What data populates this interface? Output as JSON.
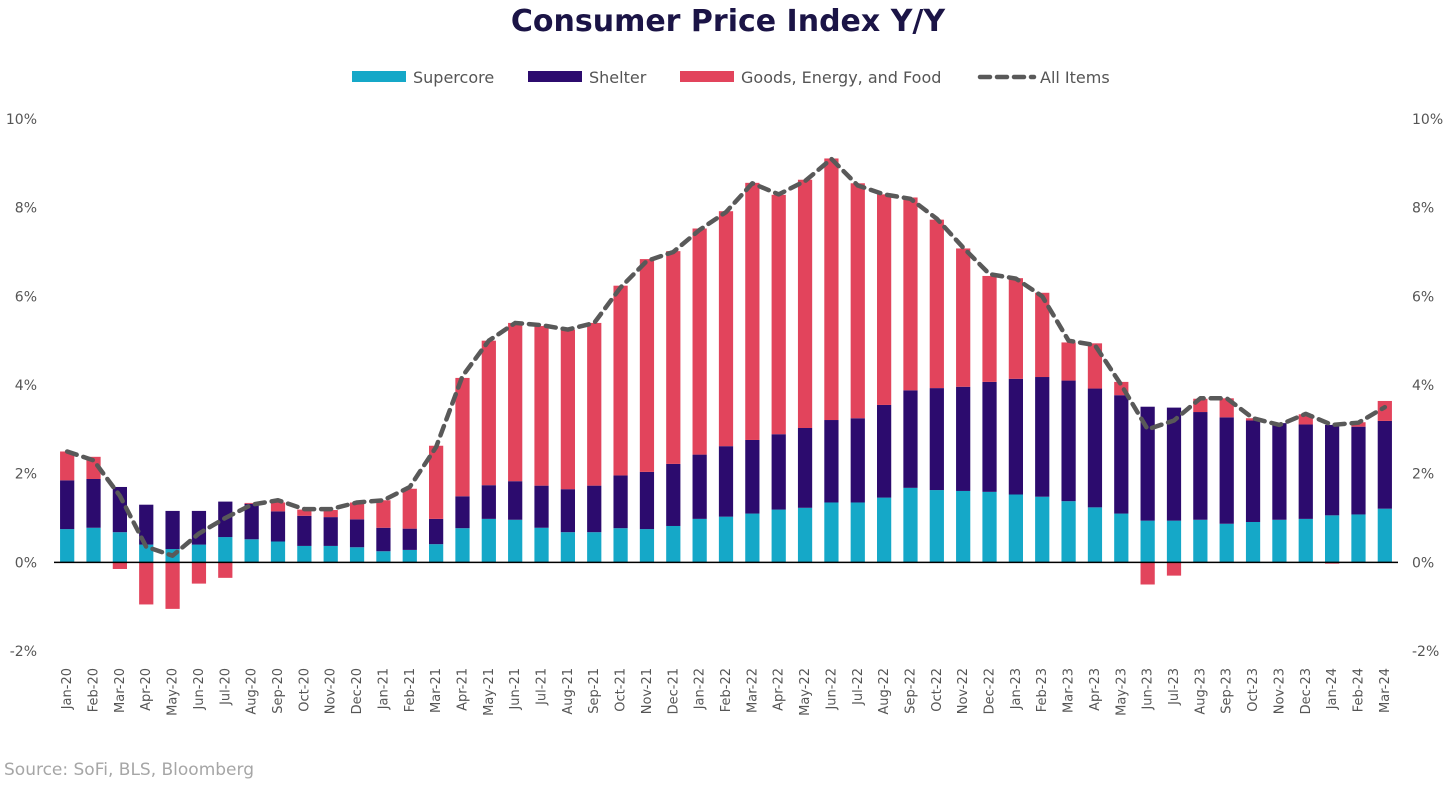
{
  "chart_data": {
    "type": "bar",
    "title": "Consumer Price Index Y/Y",
    "source": "Source: SoFi, BLS, Bloomberg",
    "ylim": [
      -2,
      10
    ],
    "yticks": [
      "-2%",
      "0%",
      "2%",
      "4%",
      "6%",
      "8%",
      "10%"
    ],
    "grid": false,
    "legend_position": "top-center",
    "stacked": true,
    "categories": [
      "Jan-20",
      "Feb-20",
      "Mar-20",
      "Apr-20",
      "May-20",
      "Jun-20",
      "Jul-20",
      "Aug-20",
      "Sep-20",
      "Oct-20",
      "Nov-20",
      "Dec-20",
      "Jan-21",
      "Feb-21",
      "Mar-21",
      "Apr-21",
      "May-21",
      "Jun-21",
      "Jul-21",
      "Aug-21",
      "Sep-21",
      "Oct-21",
      "Nov-21",
      "Dec-21",
      "Jan-22",
      "Feb-22",
      "Mar-22",
      "Apr-22",
      "May-22",
      "Jun-22",
      "Jul-22",
      "Aug-22",
      "Sep-22",
      "Oct-22",
      "Nov-22",
      "Dec-22",
      "Jan-23",
      "Feb-23",
      "Mar-23",
      "Apr-23",
      "May-23",
      "Jun-23",
      "Jul-23",
      "Aug-23",
      "Sep-23",
      "Oct-23",
      "Nov-23",
      "Dec-23",
      "Jan-24",
      "Feb-24",
      "Mar-24"
    ],
    "series": [
      {
        "name": "Supercore",
        "type": "bar",
        "color": "#15a8c8",
        "values": [
          0.75,
          0.78,
          0.68,
          0.4,
          0.3,
          0.4,
          0.57,
          0.52,
          0.47,
          0.37,
          0.37,
          0.34,
          0.25,
          0.28,
          0.41,
          0.77,
          0.98,
          0.96,
          0.78,
          0.68,
          0.68,
          0.77,
          0.75,
          0.82,
          0.98,
          1.03,
          1.1,
          1.19,
          1.23,
          1.35,
          1.35,
          1.46,
          1.68,
          1.63,
          1.61,
          1.59,
          1.53,
          1.48,
          1.38,
          1.24,
          1.1,
          0.94,
          0.94,
          0.96,
          0.87,
          0.91,
          0.96,
          0.98,
          1.06,
          1.08,
          1.21
        ]
      },
      {
        "name": "Shelter",
        "type": "bar",
        "color": "#2c0b6e",
        "values": [
          1.1,
          1.1,
          1.02,
          0.9,
          0.86,
          0.76,
          0.8,
          0.8,
          0.68,
          0.68,
          0.65,
          0.63,
          0.53,
          0.48,
          0.57,
          0.72,
          0.76,
          0.87,
          0.95,
          0.97,
          1.05,
          1.19,
          1.29,
          1.4,
          1.45,
          1.59,
          1.66,
          1.7,
          1.8,
          1.86,
          1.9,
          2.09,
          2.2,
          2.3,
          2.35,
          2.48,
          2.61,
          2.7,
          2.72,
          2.68,
          2.67,
          2.57,
          2.55,
          2.43,
          2.4,
          2.29,
          2.18,
          2.13,
          2.04,
          1.98,
          1.98
        ]
      },
      {
        "name": "Goods, Energy, and Food",
        "type": "bar",
        "color": "#e2445c",
        "values": [
          0.65,
          0.5,
          -0.15,
          -0.95,
          -1.05,
          -0.48,
          -0.35,
          0.02,
          0.2,
          0.14,
          0.16,
          0.38,
          0.62,
          0.9,
          1.65,
          2.67,
          3.26,
          3.57,
          3.6,
          3.6,
          3.67,
          4.28,
          4.8,
          4.8,
          5.1,
          5.3,
          5.8,
          5.4,
          5.6,
          5.9,
          5.3,
          4.75,
          4.35,
          3.8,
          3.12,
          2.39,
          2.27,
          1.9,
          0.86,
          1.02,
          0.3,
          -0.5,
          -0.3,
          0.3,
          0.43,
          0.05,
          0.0,
          0.23,
          -0.03,
          0.1,
          0.45
        ]
      },
      {
        "name": "All Items",
        "type": "line",
        "color": "#595959",
        "values": [
          2.5,
          2.3,
          1.5,
          0.35,
          0.15,
          0.65,
          1.0,
          1.3,
          1.4,
          1.2,
          1.2,
          1.35,
          1.4,
          1.7,
          2.6,
          4.2,
          5.0,
          5.4,
          5.35,
          5.25,
          5.4,
          6.2,
          6.8,
          7.0,
          7.5,
          7.9,
          8.55,
          8.3,
          8.6,
          9.1,
          8.5,
          8.3,
          8.2,
          7.75,
          7.1,
          6.5,
          6.4,
          6.0,
          5.0,
          4.9,
          4.0,
          3.0,
          3.2,
          3.7,
          3.7,
          3.25,
          3.1,
          3.35,
          3.1,
          3.15,
          3.5
        ]
      }
    ]
  }
}
